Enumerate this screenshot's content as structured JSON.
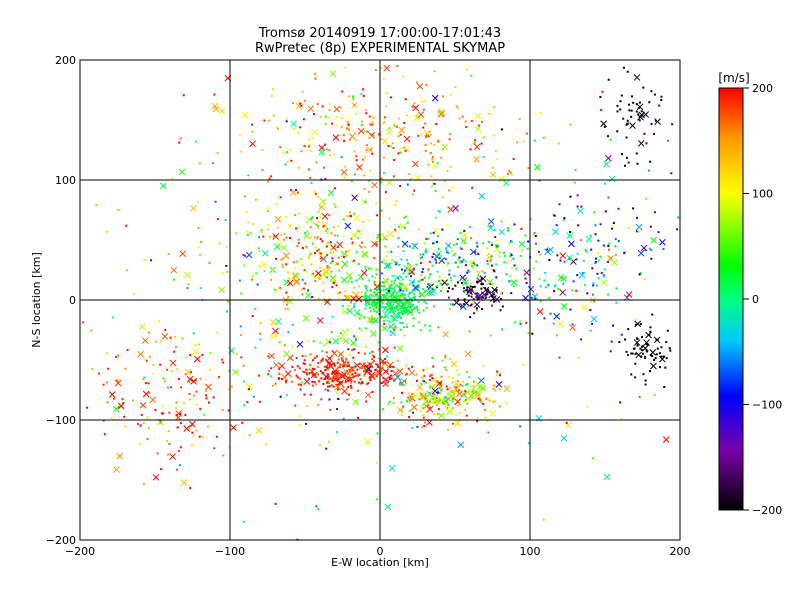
{
  "chart_data": {
    "type": "scatter",
    "title": "Tromsø 20140919 17:00:00-17:01:43",
    "subtitle": "RwPretec (8p) EXPERIMENTAL SKYMAP",
    "xlabel": "E-W location [km]",
    "ylabel": "N-S location [km]",
    "xlim": [
      -200,
      200
    ],
    "ylim": [
      -200,
      200
    ],
    "xticks": [
      "−200",
      "−100",
      "0",
      "100",
      "200"
    ],
    "xtick_values": [
      -200,
      -100,
      0,
      100,
      200
    ],
    "yticks": [
      "−200",
      "−100",
      "0",
      "100",
      "200"
    ],
    "ytick_values": [
      -200,
      -100,
      0,
      100,
      200
    ],
    "grid": true,
    "colorbar": {
      "label": "[m/s]",
      "range": [
        -200,
        200
      ],
      "ticks": [
        "200",
        "100",
        "0",
        "−100",
        "−200"
      ],
      "tick_values": [
        200,
        100,
        0,
        -100,
        -200
      ],
      "colormap": [
        "#000000",
        "#7a00a8",
        "#0000ff",
        "#00c8ff",
        "#00ff80",
        "#00ff00",
        "#ffff00",
        "#ff9a00",
        "#ff0000"
      ]
    },
    "markers": {
      "dot": "small point",
      "cross": "large detection"
    },
    "clusters": [
      {
        "x": 10,
        "y": 0,
        "sx": 14,
        "sy": 14,
        "n": 320,
        "v": 10,
        "sv": 30
      },
      {
        "x": -25,
        "y": -60,
        "sx": 30,
        "sy": 12,
        "n": 300,
        "v": 190,
        "sv": 25
      },
      {
        "x": 45,
        "y": -80,
        "sx": 25,
        "sy": 15,
        "n": 220,
        "v": 120,
        "sv": 80
      },
      {
        "x": 65,
        "y": 5,
        "sx": 12,
        "sy": 10,
        "n": 90,
        "v": -185,
        "sv": 25
      },
      {
        "x": 50,
        "y": 35,
        "sx": 40,
        "sy": 25,
        "n": 220,
        "v": 0,
        "sv": 110
      },
      {
        "x": -40,
        "y": 40,
        "sx": 35,
        "sy": 35,
        "n": 250,
        "v": 130,
        "sv": 80
      },
      {
        "x": 0,
        "y": 140,
        "sx": 70,
        "sy": 35,
        "n": 260,
        "v": 150,
        "sv": 60
      },
      {
        "x": 180,
        "y": -40,
        "sx": 12,
        "sy": 18,
        "n": 70,
        "v": -200,
        "sv": 10
      },
      {
        "x": 170,
        "y": 150,
        "sx": 15,
        "sy": 25,
        "n": 60,
        "v": -195,
        "sv": 15
      },
      {
        "x": 140,
        "y": 40,
        "sx": 40,
        "sy": 50,
        "n": 160,
        "v": -60,
        "sv": 120
      },
      {
        "x": -140,
        "y": -80,
        "sx": 35,
        "sy": 40,
        "n": 150,
        "v": 170,
        "sv": 60
      },
      {
        "x": 0,
        "y": 0,
        "sx": 120,
        "sy": 120,
        "n": 520,
        "v": 60,
        "sv": 140
      }
    ]
  }
}
